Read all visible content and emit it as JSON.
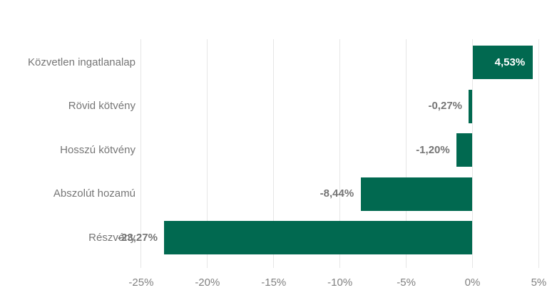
{
  "chart_data": {
    "type": "bar",
    "orientation": "horizontal",
    "title": "",
    "xlabel": "",
    "ylabel": "",
    "categories": [
      "Közvetlen ingatlanalap",
      "Rövid kötvény",
      "Hosszú kötvény",
      "Abszolút hozamú",
      "Részvény"
    ],
    "values": [
      4.53,
      -0.27,
      -1.2,
      -8.44,
      -23.27
    ],
    "value_labels": [
      "4,53%",
      "-0,27%",
      "-1,20%",
      "-8,44%",
      "-23,27%"
    ],
    "x_ticks": [
      {
        "value": -25,
        "label": "-25%"
      },
      {
        "value": -20,
        "label": "-20%"
      },
      {
        "value": -15,
        "label": "-15%"
      },
      {
        "value": -10,
        "label": "-10%"
      },
      {
        "value": -5,
        "label": "-5%"
      },
      {
        "value": 0,
        "label": "0%"
      },
      {
        "value": 5,
        "label": "5%"
      }
    ],
    "xlim": [
      -25,
      5
    ],
    "grid": "vertical",
    "legend": "none"
  },
  "colors": {
    "bar": "#016950",
    "gridline": "#e6e6e6",
    "category_text": "#767676",
    "tick_text": "#808080",
    "value_outside_text": "#757575",
    "value_inside_text": "#ffffff",
    "background": "#ffffff"
  }
}
